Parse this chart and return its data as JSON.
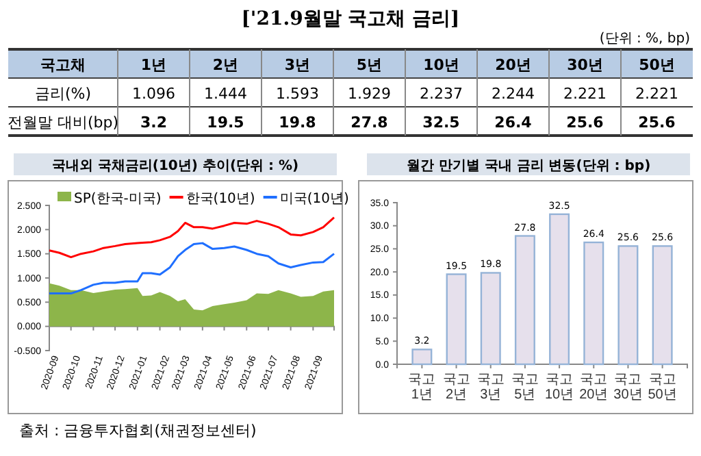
{
  "chart_data": [
    {
      "type": "other",
      "title": "['21.9월말 국고채 금리]",
      "subtitle": "(단위 : %, bp)",
      "xlabel": "국고채",
      "categories": [
        "1년",
        "2년",
        "3년",
        "5년",
        "10년",
        "20년",
        "30년",
        "50년"
      ],
      "data_labels": true,
      "series": [
        {
          "name": "금리(%)",
          "values": [
            1.096,
            1.444,
            1.593,
            1.929,
            2.237,
            2.244,
            2.221,
            2.221
          ]
        },
        {
          "name": "전월말 대비(bp)",
          "values": [
            3.2,
            19.5,
            19.8,
            27.8,
            32.5,
            26.4,
            25.6,
            25.6
          ]
        }
      ]
    },
    {
      "type": "line",
      "title": "국내외 국채금리(10년) 추이(단위 : %)",
      "legend": "top",
      "x": [
        "2020-09-01",
        "2020-09-15",
        "2020-10-01",
        "2020-10-15",
        "2020-11-01",
        "2020-11-15",
        "2020-12-01",
        "2020-12-15",
        "2021-01-01",
        "2021-01-08",
        "2021-01-20",
        "2021-02-01",
        "2021-02-15",
        "2021-02-26",
        "2021-03-08",
        "2021-03-20",
        "2021-04-01",
        "2021-04-15",
        "2021-05-01",
        "2021-05-15",
        "2021-06-01",
        "2021-06-15",
        "2021-07-01",
        "2021-07-15",
        "2021-08-01",
        "2021-08-15",
        "2021-09-01",
        "2021-09-15",
        "2021-09-30"
      ],
      "xlim": [
        "2020-09-01",
        "2021-09-30"
      ],
      "xticks": [
        {
          "value": "2020-09-01",
          "label": "2020-09"
        },
        {
          "value": "2020-10-01",
          "label": "2020-10"
        },
        {
          "value": "2020-11-01",
          "label": "2020-11"
        },
        {
          "value": "2020-12-01",
          "label": "2020-12"
        },
        {
          "value": "2021-01-01",
          "label": "2021-01"
        },
        {
          "value": "2021-02-01",
          "label": "2021-02"
        },
        {
          "value": "2021-03-01",
          "label": "2021-03"
        },
        {
          "value": "2021-04-01",
          "label": "2021-04"
        },
        {
          "value": "2021-05-01",
          "label": "2021-05"
        },
        {
          "value": "2021-06-01",
          "label": "2021-06"
        },
        {
          "value": "2021-07-01",
          "label": "2021-07"
        },
        {
          "value": "2021-08-01",
          "label": "2021-08"
        },
        {
          "value": "2021-09-01",
          "label": "2021-09"
        }
      ],
      "ylim": [
        -0.5,
        2.5
      ],
      "yticks": [
        {
          "value": -0.5,
          "label": "-0.500"
        },
        {
          "value": 0,
          "label": "0.000"
        },
        {
          "value": 0.5,
          "label": "0.500"
        },
        {
          "value": 1,
          "label": "1.000"
        },
        {
          "value": 1.5,
          "label": "1.500"
        },
        {
          "value": 2,
          "label": "2.000"
        },
        {
          "value": 2.5,
          "label": "2.500"
        }
      ],
      "series": [
        {
          "name": "SP(한국-미국)",
          "type": "area",
          "color": "#8db54a",
          "values": [
            0.89,
            0.84,
            0.75,
            0.75,
            0.69,
            0.72,
            0.76,
            0.77,
            0.79,
            0.63,
            0.64,
            0.71,
            0.63,
            0.52,
            0.56,
            0.35,
            0.33,
            0.42,
            0.46,
            0.49,
            0.54,
            0.68,
            0.67,
            0.75,
            0.68,
            0.61,
            0.63,
            0.72,
            0.75
          ]
        },
        {
          "name": "한국(10년)",
          "type": "line",
          "color": "#ff0000",
          "values": [
            1.57,
            1.52,
            1.43,
            1.5,
            1.55,
            1.62,
            1.66,
            1.7,
            1.72,
            1.73,
            1.74,
            1.78,
            1.85,
            1.97,
            2.14,
            2.05,
            2.05,
            2.02,
            2.08,
            2.14,
            2.12,
            2.18,
            2.12,
            2.05,
            1.9,
            1.88,
            1.95,
            2.05,
            2.25
          ]
        },
        {
          "name": "미국(10년)",
          "type": "line",
          "color": "#1f6fff",
          "values": [
            0.68,
            0.68,
            0.68,
            0.75,
            0.86,
            0.9,
            0.9,
            0.93,
            0.93,
            1.1,
            1.1,
            1.07,
            1.22,
            1.45,
            1.58,
            1.7,
            1.72,
            1.6,
            1.62,
            1.65,
            1.58,
            1.5,
            1.45,
            1.3,
            1.22,
            1.27,
            1.32,
            1.33,
            1.5
          ]
        }
      ]
    },
    {
      "type": "bar",
      "title": "월간 만기별 국내 금리 변동(단위 : bp)",
      "categories": [
        "국고 1년",
        "국고 2년",
        "국고 3년",
        "국고 5년",
        "국고 10년",
        "국고 20년",
        "국고 30년",
        "국고 50년"
      ],
      "values": [
        3.2,
        19.5,
        19.8,
        27.8,
        32.5,
        26.4,
        25.6,
        25.6
      ],
      "color": "#e6e0ec",
      "data_labels": true,
      "ylim": [
        0,
        35
      ],
      "yticks": [
        {
          "value": 0,
          "label": "0.0"
        },
        {
          "value": 5,
          "label": "5.0"
        },
        {
          "value": 10,
          "label": "10.0"
        },
        {
          "value": 15,
          "label": "15.0"
        },
        {
          "value": 20,
          "label": "20.0"
        },
        {
          "value": 25,
          "label": "25.0"
        },
        {
          "value": 30,
          "label": "30.0"
        },
        {
          "value": 35,
          "label": "35.0"
        }
      ],
      "annotations": [
        "출처 : 금융투자협회(채권정보센터)"
      ]
    }
  ]
}
